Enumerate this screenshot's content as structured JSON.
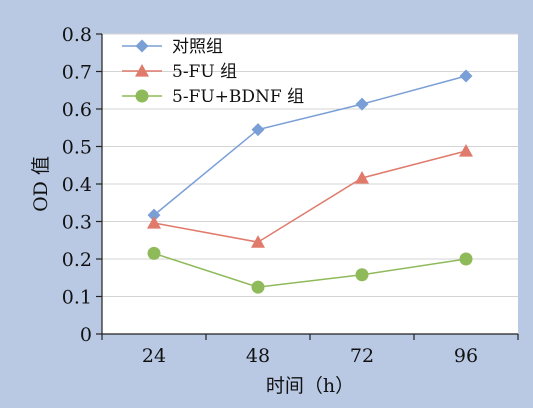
{
  "chart_data": {
    "type": "line",
    "xlabel": "时间（h）",
    "ylabel": "OD 值",
    "categories": [
      "24",
      "48",
      "72",
      "96"
    ],
    "ylim": [
      0,
      0.8
    ],
    "yticks": [
      "0",
      "0.1",
      "0.2",
      "0.3",
      "0.4",
      "0.5",
      "0.6",
      "0.7",
      "0.8"
    ],
    "grid": true,
    "legend": "top-left",
    "series": [
      {
        "name": "对照组",
        "marker": "diamond",
        "color": "#7a9fd6",
        "values": [
          0.317,
          0.545,
          0.613,
          0.688
        ]
      },
      {
        "name": "5-FU 组",
        "marker": "triangle",
        "color": "#e07b6c",
        "values": [
          0.296,
          0.245,
          0.416,
          0.488
        ]
      },
      {
        "name": "5-FU+BDNF 组",
        "marker": "circle",
        "color": "#8fba5a",
        "values": [
          0.215,
          0.125,
          0.158,
          0.2
        ]
      }
    ]
  }
}
